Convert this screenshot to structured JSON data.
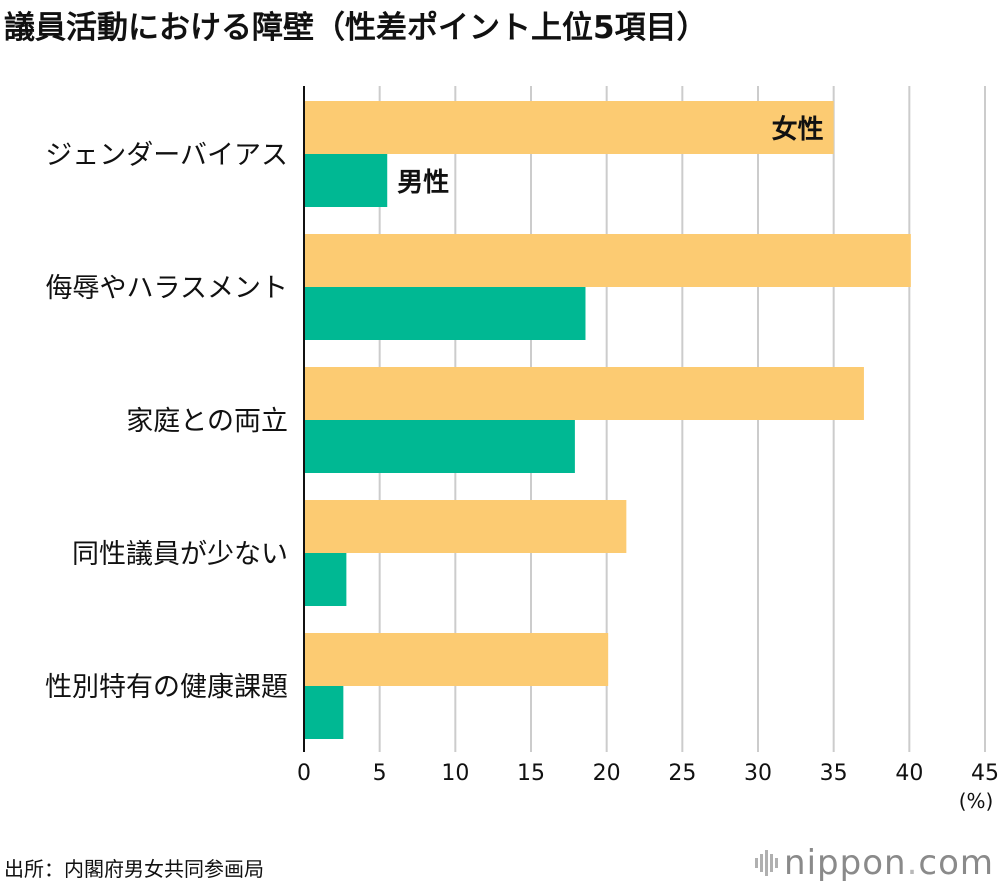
{
  "title": "議員活動における障壁（性差ポイント上位5項目）",
  "source": "出所：内閣府男女共同参画局",
  "logo": {
    "brand": "nippon",
    "dot": ".",
    "tld": "com"
  },
  "chart_data": {
    "type": "bar",
    "orientation": "horizontal",
    "title": "議員活動における障壁（性差ポイント上位5項目）",
    "categories": [
      "ジェンダーバイアス",
      "侮辱やハラスメント",
      "家庭との両立",
      "同性議員が少ない",
      "性別特有の健康課題"
    ],
    "series": [
      {
        "name": "女性",
        "color": "#fccb72",
        "values": [
          35.0,
          40.1,
          37.0,
          21.3,
          20.1
        ]
      },
      {
        "name": "男性",
        "color": "#00b893",
        "values": [
          5.5,
          18.6,
          17.9,
          2.8,
          2.6
        ]
      }
    ],
    "xlim": [
      0,
      45
    ],
    "xticks": [
      0,
      5,
      10,
      15,
      20,
      25,
      30,
      35,
      40,
      45
    ],
    "unit": "(%)",
    "grid": true
  }
}
